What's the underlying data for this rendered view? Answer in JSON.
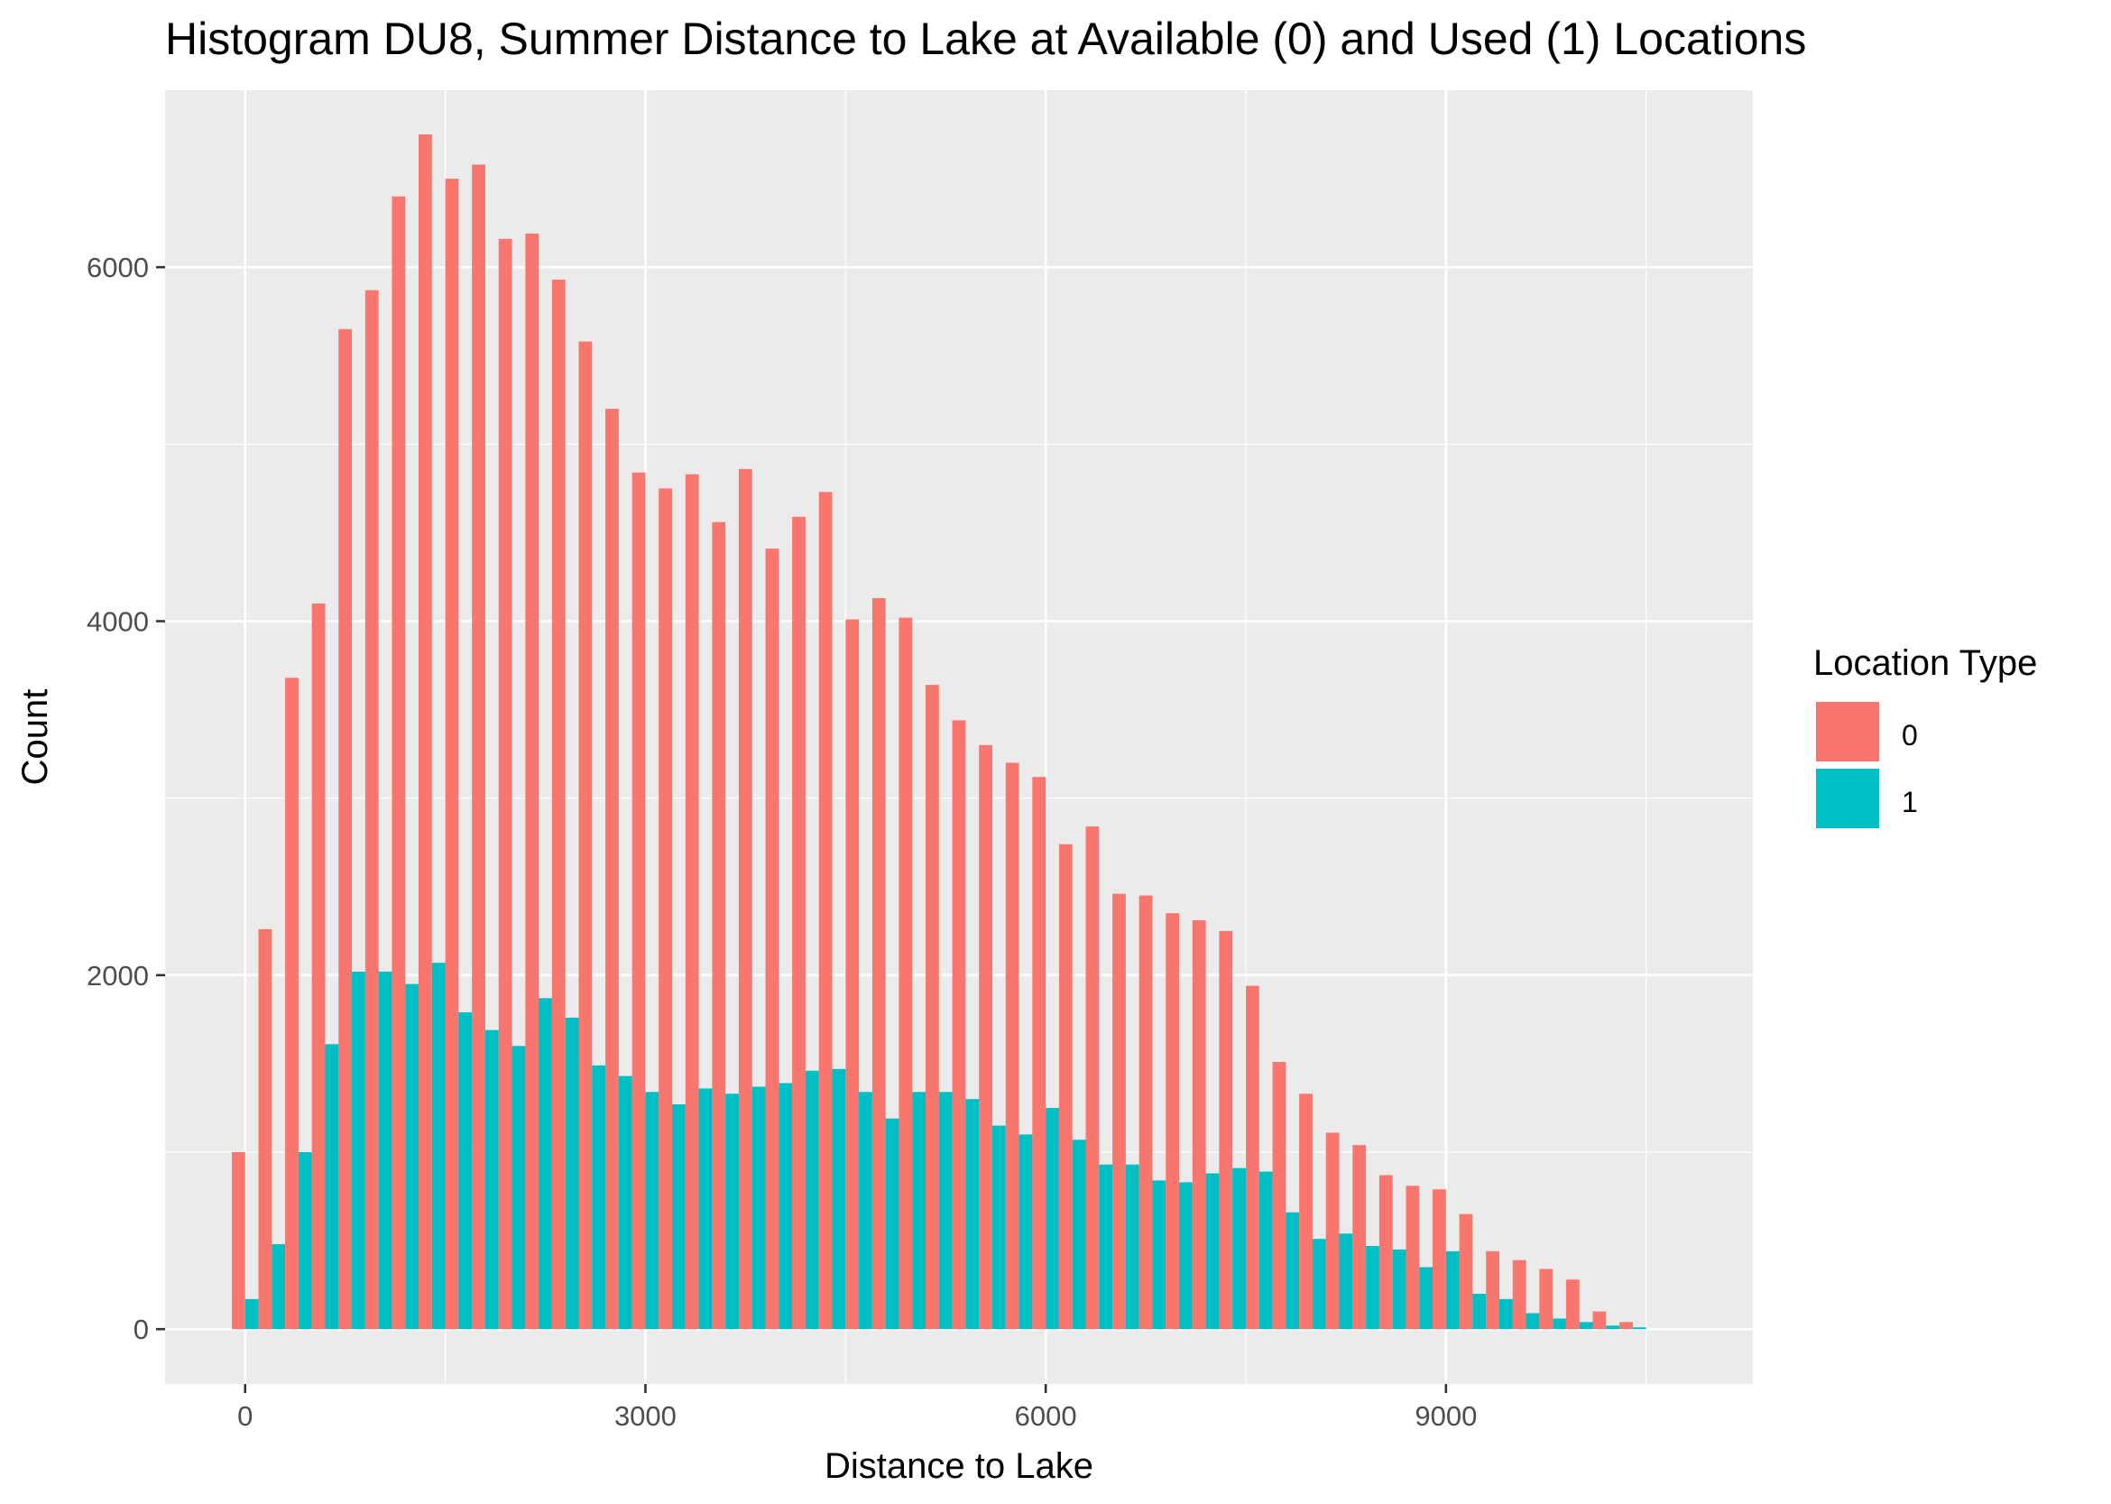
{
  "chart_data": {
    "type": "bar",
    "title": "Histogram DU8, Summer Distance to Lake at Available (0) and Used (1) Locations",
    "xlabel": "Distance to Lake",
    "ylabel": "Count",
    "xlim": [
      -600,
      11300
    ],
    "ylim": [
      -310,
      7000
    ],
    "x_ticks": [
      0,
      3000,
      6000,
      9000
    ],
    "x_tick_labels": [
      "0",
      "3000",
      "6000",
      "9000"
    ],
    "y_ticks": [
      0,
      2000,
      4000,
      6000
    ],
    "y_tick_labels": [
      "0",
      "2000",
      "4000",
      "6000"
    ],
    "bin_width": 200,
    "grid": true,
    "legend": {
      "title": "Location Type",
      "position": "right",
      "entries": [
        "0",
        "1"
      ]
    },
    "colors": {
      "0": "#F8766D",
      "1": "#00BFC4",
      "panel": "#EBEBEB",
      "grid": "#FFFFFF"
    },
    "x": [
      0,
      200,
      400,
      600,
      800,
      1000,
      1200,
      1400,
      1600,
      1800,
      2000,
      2200,
      2400,
      2600,
      2800,
      3000,
      3200,
      3400,
      3600,
      3800,
      4000,
      4200,
      4400,
      4600,
      4800,
      5000,
      5200,
      5400,
      5600,
      5800,
      6000,
      6200,
      6400,
      6600,
      6800,
      7000,
      7200,
      7400,
      7600,
      7800,
      8000,
      8200,
      8400,
      8600,
      8800,
      9000,
      9200,
      9400,
      9600,
      9800,
      10000,
      10200,
      10400
    ],
    "series": [
      {
        "name": "0",
        "values": [
          1000,
          2260,
          3680,
          4100,
          5650,
          5870,
          6400,
          6750,
          6500,
          6580,
          6160,
          6190,
          5930,
          5580,
          5200,
          4840,
          4750,
          4830,
          4560,
          4860,
          4410,
          4590,
          4730,
          4010,
          4130,
          4020,
          3640,
          3440,
          3300,
          3200,
          3120,
          2740,
          2840,
          2460,
          2450,
          2350,
          2310,
          2250,
          1940,
          1510,
          1330,
          1110,
          1040,
          870,
          810,
          790,
          650,
          440,
          390,
          340,
          280,
          100,
          40
        ]
      },
      {
        "name": "1",
        "values": [
          170,
          480,
          1000,
          1610,
          2020,
          2020,
          1950,
          2070,
          1790,
          1690,
          1600,
          1870,
          1760,
          1490,
          1430,
          1340,
          1270,
          1360,
          1330,
          1370,
          1390,
          1460,
          1470,
          1340,
          1190,
          1340,
          1340,
          1300,
          1150,
          1100,
          1250,
          1070,
          930,
          930,
          840,
          830,
          880,
          910,
          890,
          660,
          510,
          540,
          470,
          450,
          350,
          440,
          200,
          170,
          90,
          60,
          40,
          20,
          10
        ]
      }
    ]
  }
}
